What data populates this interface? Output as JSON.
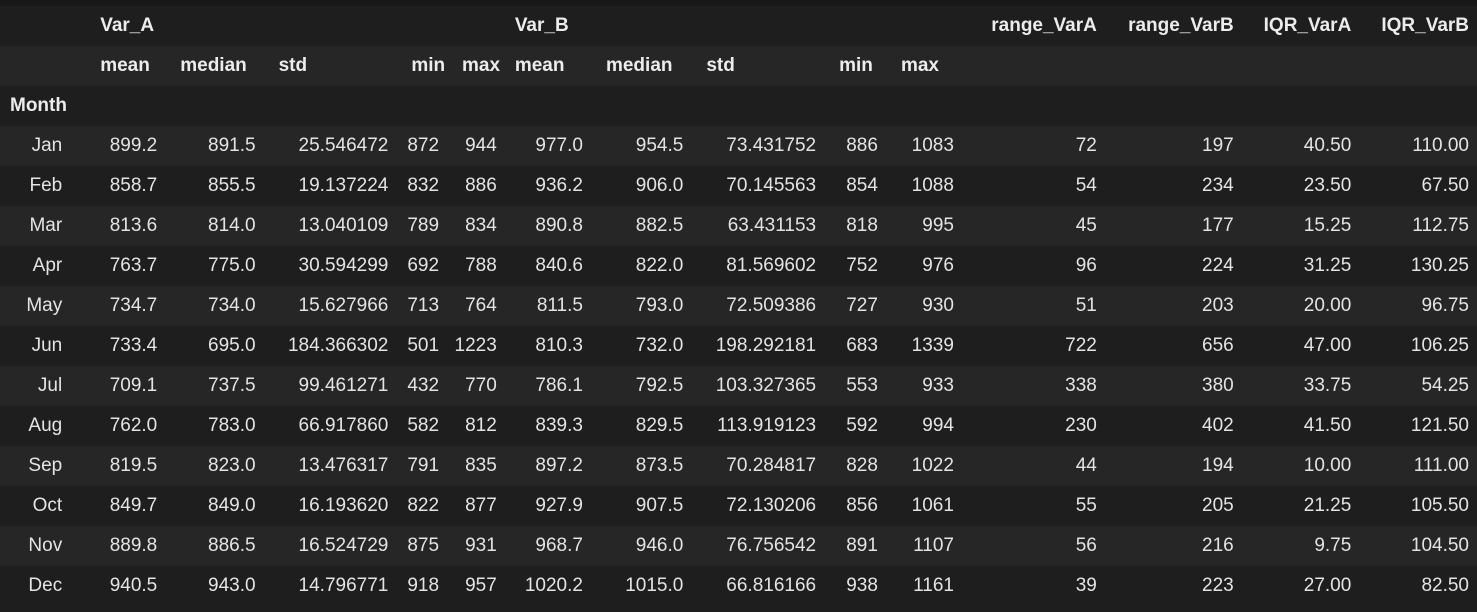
{
  "table": {
    "top_groups": {
      "var_a": "Var_A",
      "var_b": "Var_B",
      "range_vara": "range_VarA",
      "range_varb": "range_VarB",
      "iqr_vara": "IQR_VarA",
      "iqr_varb": "IQR_VarB"
    },
    "sub_headers": [
      "mean",
      "median",
      "std",
      "min",
      "max",
      "mean",
      "median",
      "std",
      "min",
      "max"
    ],
    "index_name": "Month",
    "rows": [
      {
        "month": "Jan",
        "cells": [
          "899.2",
          "891.5",
          "25.546472",
          "872",
          "944",
          "977.0",
          "954.5",
          "73.431752",
          "886",
          "1083",
          "72",
          "197",
          "40.50",
          "110.00"
        ]
      },
      {
        "month": "Feb",
        "cells": [
          "858.7",
          "855.5",
          "19.137224",
          "832",
          "886",
          "936.2",
          "906.0",
          "70.145563",
          "854",
          "1088",
          "54",
          "234",
          "23.50",
          "67.50"
        ]
      },
      {
        "month": "Mar",
        "cells": [
          "813.6",
          "814.0",
          "13.040109",
          "789",
          "834",
          "890.8",
          "882.5",
          "63.431153",
          "818",
          "995",
          "45",
          "177",
          "15.25",
          "112.75"
        ]
      },
      {
        "month": "Apr",
        "cells": [
          "763.7",
          "775.0",
          "30.594299",
          "692",
          "788",
          "840.6",
          "822.0",
          "81.569602",
          "752",
          "976",
          "96",
          "224",
          "31.25",
          "130.25"
        ]
      },
      {
        "month": "May",
        "cells": [
          "734.7",
          "734.0",
          "15.627966",
          "713",
          "764",
          "811.5",
          "793.0",
          "72.509386",
          "727",
          "930",
          "51",
          "203",
          "20.00",
          "96.75"
        ]
      },
      {
        "month": "Jun",
        "cells": [
          "733.4",
          "695.0",
          "184.366302",
          "501",
          "1223",
          "810.3",
          "732.0",
          "198.292181",
          "683",
          "1339",
          "722",
          "656",
          "47.00",
          "106.25"
        ]
      },
      {
        "month": "Jul",
        "cells": [
          "709.1",
          "737.5",
          "99.461271",
          "432",
          "770",
          "786.1",
          "792.5",
          "103.327365",
          "553",
          "933",
          "338",
          "380",
          "33.75",
          "54.25"
        ]
      },
      {
        "month": "Aug",
        "cells": [
          "762.0",
          "783.0",
          "66.917860",
          "582",
          "812",
          "839.3",
          "829.5",
          "113.919123",
          "592",
          "994",
          "230",
          "402",
          "41.50",
          "121.50"
        ]
      },
      {
        "month": "Sep",
        "cells": [
          "819.5",
          "823.0",
          "13.476317",
          "791",
          "835",
          "897.2",
          "873.5",
          "70.284817",
          "828",
          "1022",
          "44",
          "194",
          "10.00",
          "111.00"
        ]
      },
      {
        "month": "Oct",
        "cells": [
          "849.7",
          "849.0",
          "16.193620",
          "822",
          "877",
          "927.9",
          "907.5",
          "72.130206",
          "856",
          "1061",
          "55",
          "205",
          "21.25",
          "105.50"
        ]
      },
      {
        "month": "Nov",
        "cells": [
          "889.8",
          "886.5",
          "16.524729",
          "875",
          "931",
          "968.7",
          "946.0",
          "76.756542",
          "891",
          "1107",
          "56",
          "216",
          "9.75",
          "104.50"
        ]
      },
      {
        "month": "Dec",
        "cells": [
          "940.5",
          "943.0",
          "14.796771",
          "918",
          "957",
          "1020.2",
          "1015.0",
          "66.816166",
          "938",
          "1161",
          "39",
          "223",
          "27.00",
          "82.50"
        ]
      }
    ]
  },
  "colors": {
    "background": "#1e1e1e",
    "stripe": "#262626",
    "text": "#e4e4e4"
  }
}
